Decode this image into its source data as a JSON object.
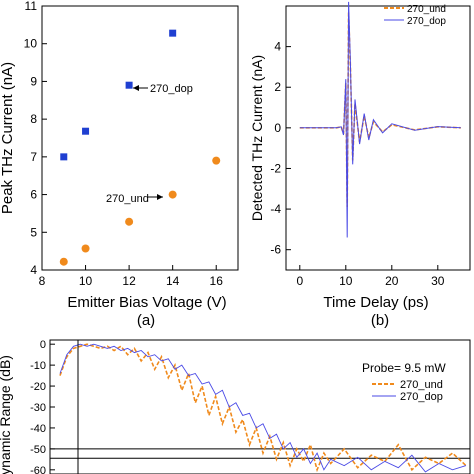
{
  "chart_data": [
    {
      "type": "scatter",
      "panel_label": "(a)",
      "xlabel": "Emitter  Bias Voltage (V)",
      "ylabel": "Peak THz Current (nA)",
      "xlim": [
        8,
        17
      ],
      "ylim": [
        4,
        11
      ],
      "x_ticks": [
        "8",
        "10",
        "12",
        "14",
        "16"
      ],
      "y_ticks": [
        "4",
        "5",
        "6",
        "7",
        "8",
        "9",
        "10",
        "11"
      ],
      "grid": false,
      "series": [
        {
          "name": "270_dop",
          "marker": "square",
          "color": "#1f3fd1",
          "points": [
            [
              9,
              7.0
            ],
            [
              10,
              7.68
            ],
            [
              12,
              8.9
            ],
            [
              14,
              10.28
            ]
          ]
        },
        {
          "name": "270_und",
          "marker": "circle",
          "color": "#f08a1c",
          "points": [
            [
              9,
              4.22
            ],
            [
              10,
              4.57
            ],
            [
              12,
              5.28
            ],
            [
              14,
              6.0
            ],
            [
              16,
              6.9
            ]
          ]
        }
      ],
      "annotations": [
        {
          "text": "270_dop",
          "x": 12,
          "y": 8.9
        },
        {
          "text": "270_und",
          "x": 14,
          "y": 6.0
        }
      ]
    },
    {
      "type": "line",
      "panel_label": "(b)",
      "xlabel": "Time Delay (ps)",
      "ylabel": "Detected THz Current (nA)",
      "xlim": [
        -3,
        37
      ],
      "ylim": [
        -7,
        6
      ],
      "x_ticks": [
        "0",
        "10",
        "20",
        "30"
      ],
      "y_ticks": [
        "-6",
        "-4",
        "-2",
        "0",
        "2",
        "4"
      ],
      "grid": false,
      "legend": "top-right",
      "series": [
        {
          "name": "270_und",
          "style": "dashed",
          "color": "#f08a1c",
          "x": [
            0,
            8,
            9,
            9.5,
            10,
            10.3,
            10.6,
            11,
            11.5,
            12,
            13,
            14,
            15,
            16,
            18,
            20,
            25,
            30,
            35
          ],
          "y": [
            0,
            0,
            0.05,
            -0.3,
            2.2,
            -3.9,
            5.7,
            3.0,
            -1.6,
            1.2,
            -0.7,
            0.6,
            -0.5,
            0.3,
            -0.2,
            0.15,
            -0.1,
            0.05,
            0
          ]
        },
        {
          "name": "270_dop",
          "style": "solid",
          "color": "#4a4ae6",
          "x": [
            0,
            8,
            9,
            9.5,
            10,
            10.3,
            10.6,
            11,
            11.5,
            12,
            13,
            14,
            15,
            16,
            18,
            20,
            25,
            30,
            35
          ],
          "y": [
            0,
            0,
            0.05,
            -0.35,
            2.4,
            -5.4,
            6.2,
            3.2,
            -1.8,
            1.4,
            -0.8,
            0.7,
            -0.6,
            0.4,
            -0.25,
            0.2,
            -0.12,
            0.06,
            0
          ]
        }
      ]
    },
    {
      "type": "line",
      "panel_label": "",
      "ylabel": "Dynamic Range (dB)",
      "ylim": [
        -62,
        2
      ],
      "y_ticks": [
        "0",
        "-10",
        "-20",
        "-30",
        "-40",
        "-50",
        "-60"
      ],
      "grid": false,
      "legend": "right",
      "annotations": [
        {
          "text": "Probe= 9.5 mW"
        }
      ],
      "hlines": [
        -50,
        -54.5
      ],
      "series": [
        {
          "name": "270_und",
          "style": "dashed",
          "color": "#f08a1c",
          "x": [
            0,
            0.05,
            0.1,
            0.15,
            0.2,
            0.25,
            0.3,
            0.35,
            0.4,
            0.45,
            0.5,
            0.55,
            0.6,
            0.65,
            0.7,
            0.75,
            0.8,
            0.85,
            0.9,
            0.95,
            1.0,
            1.05,
            1.1,
            1.15,
            1.2,
            1.25,
            1.3,
            1.35,
            1.4,
            1.45,
            1.5,
            1.55,
            1.6,
            1.65,
            1.7,
            1.75,
            1.8,
            1.85,
            1.9,
            1.95,
            2.0,
            2.1,
            2.2,
            2.3,
            2.4,
            2.5,
            2.6,
            2.7,
            2.8,
            2.9,
            3.0
          ],
          "y": [
            -15,
            -6,
            -2,
            -1,
            0,
            -1,
            -2,
            -1,
            -3,
            -1,
            -5,
            -2,
            -8,
            -4,
            -12,
            -6,
            -16,
            -10,
            -22,
            -14,
            -28,
            -20,
            -34,
            -25,
            -38,
            -30,
            -42,
            -36,
            -48,
            -40,
            -52,
            -44,
            -55,
            -47,
            -58,
            -50,
            -56,
            -48,
            -60,
            -52,
            -57,
            -50,
            -59,
            -53,
            -56,
            -48,
            -60,
            -54,
            -57,
            -52,
            -58
          ]
        },
        {
          "name": "270_dop",
          "style": "solid",
          "color": "#4a4ae6",
          "x": [
            0,
            0.05,
            0.1,
            0.15,
            0.2,
            0.25,
            0.3,
            0.35,
            0.4,
            0.45,
            0.5,
            0.55,
            0.6,
            0.65,
            0.7,
            0.75,
            0.8,
            0.85,
            0.9,
            0.95,
            1.0,
            1.05,
            1.1,
            1.15,
            1.2,
            1.25,
            1.3,
            1.35,
            1.4,
            1.45,
            1.5,
            1.55,
            1.6,
            1.65,
            1.7,
            1.75,
            1.8,
            1.85,
            1.9,
            1.95,
            2.0,
            2.1,
            2.2,
            2.3,
            2.4,
            2.5,
            2.6,
            2.7,
            2.8,
            2.9,
            3.0
          ],
          "y": [
            -14,
            -5,
            -1,
            0,
            -1,
            0,
            -1,
            -2,
            -1,
            -3,
            -2,
            -4,
            -3,
            -6,
            -5,
            -8,
            -7,
            -12,
            -10,
            -15,
            -14,
            -19,
            -18,
            -24,
            -22,
            -30,
            -28,
            -34,
            -33,
            -40,
            -38,
            -45,
            -43,
            -50,
            -47,
            -54,
            -50,
            -57,
            -52,
            -60,
            -55,
            -58,
            -54,
            -60,
            -56,
            -59,
            -53,
            -61,
            -57,
            -60,
            -58
          ]
        }
      ]
    }
  ]
}
